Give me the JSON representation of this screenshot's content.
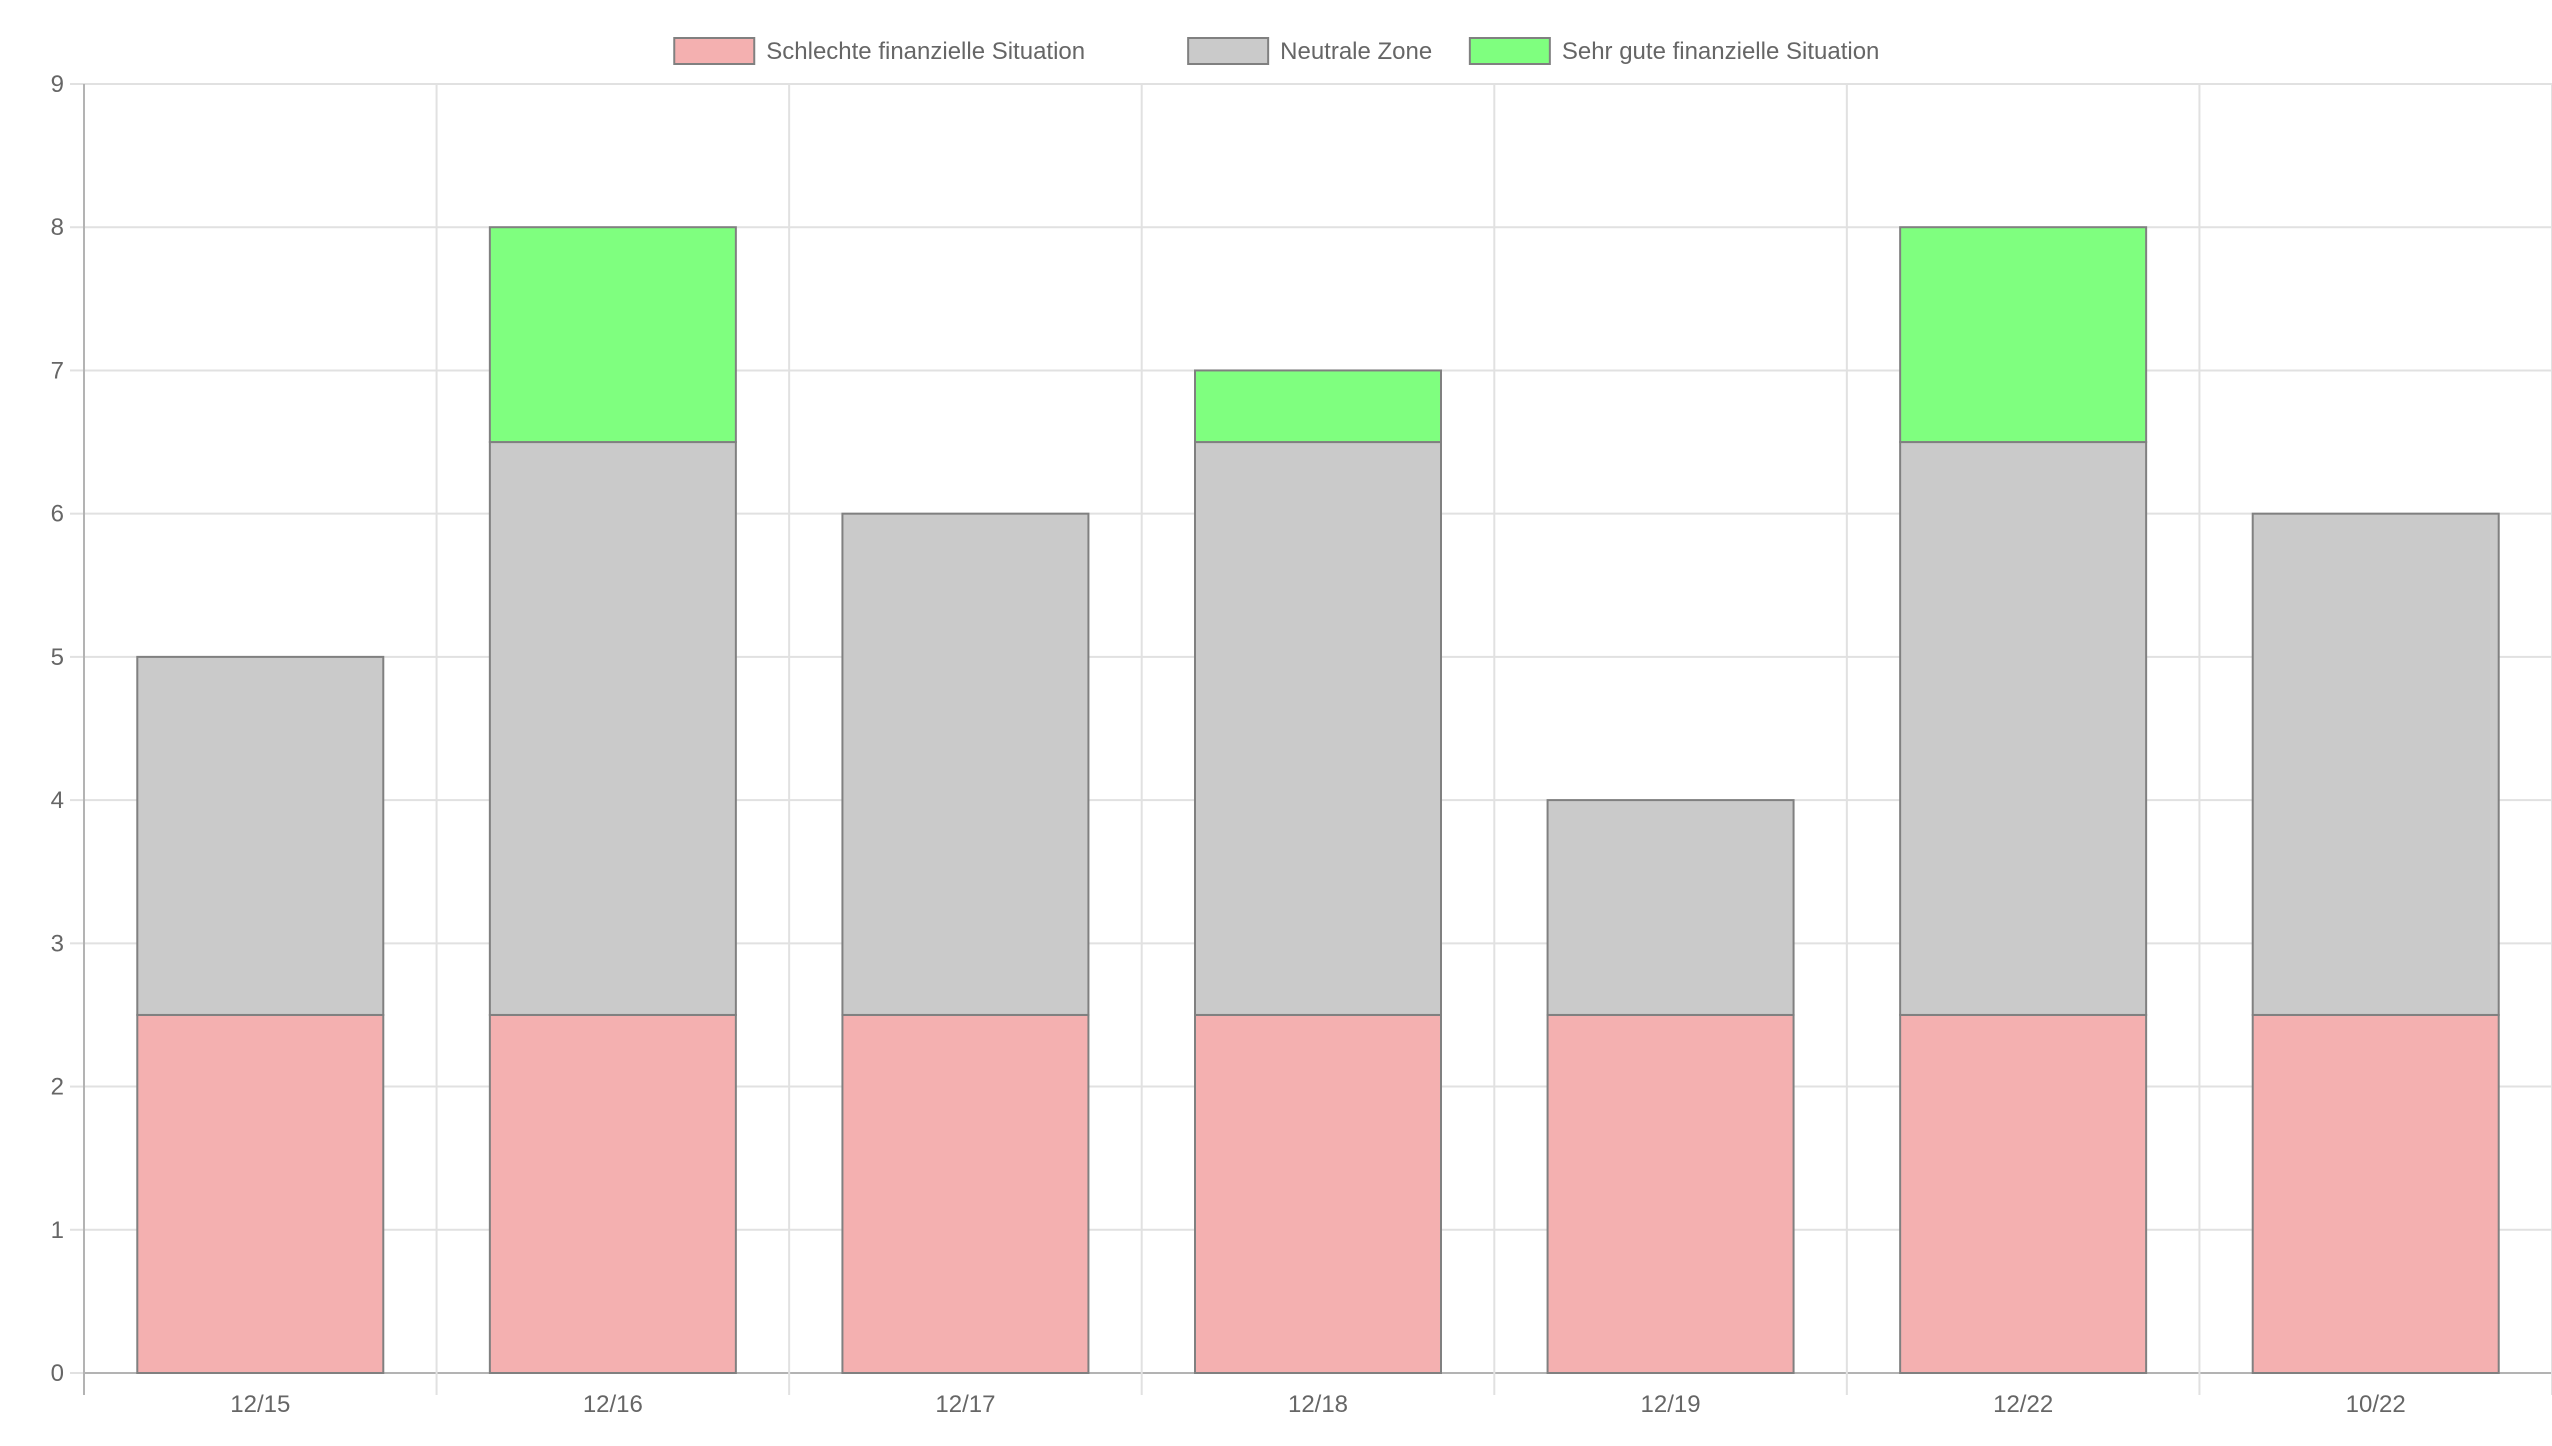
{
  "chart_data": {
    "type": "bar",
    "stacked": true,
    "title": "",
    "xlabel": "",
    "ylabel": "",
    "categories": [
      "12/15",
      "12/16",
      "12/17",
      "12/18",
      "12/19",
      "12/22",
      "10/22"
    ],
    "ylim": [
      0,
      9
    ],
    "yticks": [
      0,
      1,
      2,
      3,
      4,
      5,
      6,
      7,
      8,
      9
    ],
    "grid": true,
    "legend_position": "top",
    "series": [
      {
        "name": "Schlechte finanzielle Situation",
        "color": "#f4b0b0",
        "values": [
          2.5,
          2.5,
          2.5,
          2.5,
          2.5,
          2.5,
          2.5
        ]
      },
      {
        "name": "Neutrale Zone",
        "color": "#cacaca",
        "values": [
          2.5,
          4,
          3.5,
          4,
          1.5,
          4,
          3.5
        ]
      },
      {
        "name": "Sehr gute finanzielle Situation",
        "color": "#7fff7f",
        "values": [
          0,
          1.5,
          0,
          0.5,
          0,
          1.5,
          0
        ]
      }
    ]
  }
}
